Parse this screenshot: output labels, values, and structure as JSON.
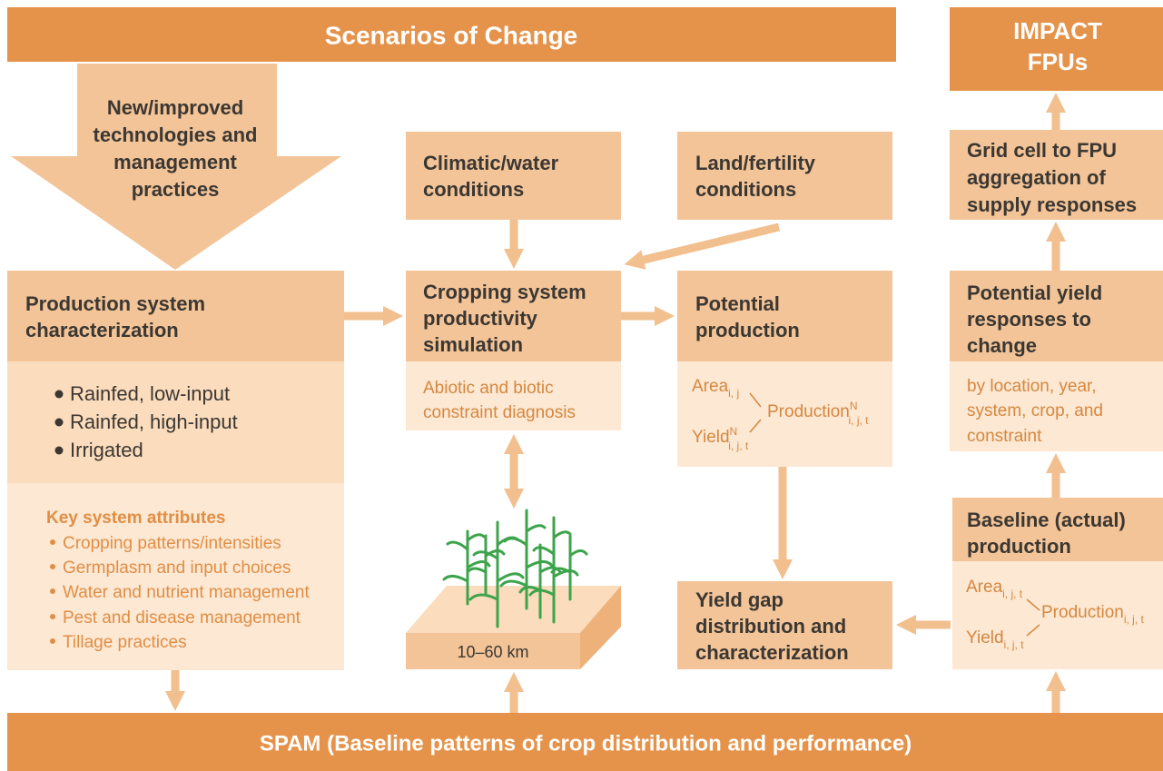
{
  "header": {
    "title": "Scenarios of Change"
  },
  "impact": {
    "lines": [
      "IMPACT",
      "FPUs"
    ]
  },
  "technologies": {
    "lines": [
      "New/improved",
      "technologies and",
      "management",
      "practices"
    ]
  },
  "climatic": {
    "lines": [
      "Climatic/water",
      "conditions"
    ]
  },
  "land": {
    "lines": [
      "Land/fertility",
      "conditions"
    ]
  },
  "grid_cell": {
    "lines": [
      "Grid cell to FPU",
      "aggregation of",
      "supply responses"
    ]
  },
  "production_system": {
    "lines": [
      "Production system",
      "characterization"
    ],
    "bullets": [
      "Rainfed, low-input",
      "Rainfed, high-input",
      "Irrigated"
    ],
    "attributes_title": "Key system attributes",
    "attributes": [
      "Cropping patterns/intensities",
      "Germplasm and input choices",
      "Water and nutrient management",
      "Pest and disease management",
      "Tillage practices"
    ]
  },
  "cropping": {
    "lines": [
      "Cropping system",
      "productivity",
      "simulation"
    ],
    "note": [
      "Abiotic and biotic",
      "constraint diagnosis"
    ]
  },
  "potential_production": {
    "lines": [
      "Potential",
      "production"
    ],
    "formula": {
      "area": "Area",
      "area_sub": "i, j",
      "yield": "Yield",
      "yield_sup": "N",
      "yield_sub": "i, j, t",
      "production": "Production",
      "production_sup": "N",
      "production_sub": "i, j, t"
    }
  },
  "potential_yield": {
    "lines": [
      "Potential yield",
      "responses to",
      "change"
    ],
    "note": [
      "by location, year,",
      "system, crop, and",
      "constraint"
    ]
  },
  "baseline": {
    "lines": [
      "Baseline (actual)",
      "production"
    ],
    "formula": {
      "area": "Area",
      "area_sub": "i, j, t",
      "yield": "Yield",
      "yield_sub": "i, j, t",
      "production": "Production",
      "production_sub": "i, j, t"
    }
  },
  "yield_gap": {
    "lines": [
      "Yield gap",
      "distribution and",
      "characterization"
    ]
  },
  "scale": {
    "label": "10–60 km"
  },
  "footer": {
    "title": "SPAM (Baseline patterns of crop distribution and performance)"
  }
}
